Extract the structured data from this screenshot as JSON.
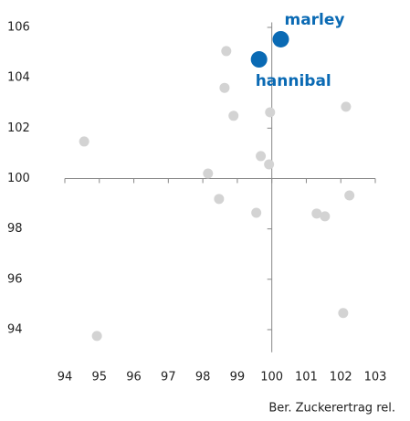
{
  "chart_data": {
    "type": "scatter",
    "x_label": "Ber. Zuckerertrag rel.",
    "x": [
      94.56,
      94.93,
      98.68,
      98.63,
      98.89,
      99.95,
      99.68,
      99.92,
      98.15,
      98.47,
      99.55,
      102.15,
      102.25,
      101.3,
      101.54,
      102.07
    ],
    "y": [
      101.47,
      93.75,
      105.06,
      103.6,
      102.49,
      102.63,
      100.89,
      100.56,
      100.2,
      99.19,
      98.64,
      102.85,
      99.33,
      98.61,
      98.5,
      94.66
    ],
    "color": "#d3d3d3",
    "highlights": [
      {
        "label": "marley",
        "x": 100.26,
        "y": 105.53,
        "color": "#0a6ab4",
        "label_position": "above-right"
      },
      {
        "label": "hannibal",
        "x": 99.63,
        "y": 104.73,
        "color": "#0a6ab4",
        "label_position": "below-right"
      }
    ],
    "xlim": [
      94,
      103
    ],
    "ylim": [
      93.1,
      106.2
    ],
    "xticks": [
      94,
      95,
      96,
      97,
      98,
      99,
      100,
      101,
      102,
      103
    ],
    "yticks": [
      94,
      96,
      98,
      100,
      102,
      104,
      106
    ],
    "axis_cross": [
      100,
      100
    ]
  }
}
